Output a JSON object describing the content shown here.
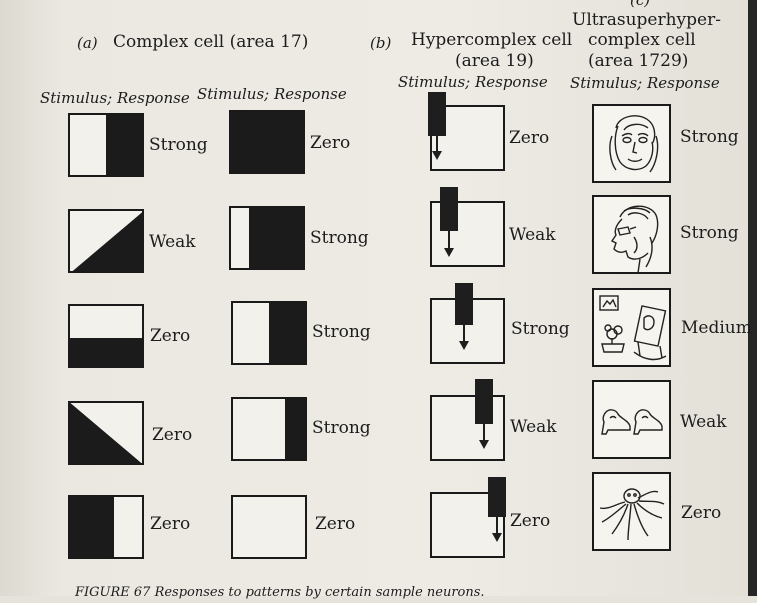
{
  "panel_a": {
    "label": "(a)",
    "title": "Complex cell (area 17)",
    "col_header_1": "Stimulus; Response",
    "col_header_2": "Stimulus; Response",
    "responses_col1": [
      "Strong",
      "Weak",
      "Zero",
      "Zero",
      "Zero"
    ],
    "responses_col2": [
      "Zero",
      "Strong",
      "Strong",
      "Strong",
      "Zero"
    ]
  },
  "panel_b": {
    "label": "(b)",
    "title_line1": "Hypercomplex cell",
    "title_line2": "(area 19)",
    "col_header": "Stimulus; Response",
    "responses": [
      "Zero",
      "Weak",
      "Strong",
      "Weak",
      "Zero"
    ]
  },
  "panel_c": {
    "label": "(c)",
    "title_line1": "Ultrasuperhyper-",
    "title_line2": "complex cell",
    "title_line3": "(area 1729)",
    "col_header": "Stimulus; Response",
    "responses": [
      "Strong",
      "Strong",
      "Medium",
      "Weak",
      "Zero"
    ],
    "stimuli": [
      "grandmother-face-icon",
      "grandmother-profile-icon",
      "rocking-chair-portrait-icon",
      "shoes-icon",
      "octopus-icon"
    ]
  },
  "caption": "FIGURE 67  Responses to patterns by certain sample neurons."
}
